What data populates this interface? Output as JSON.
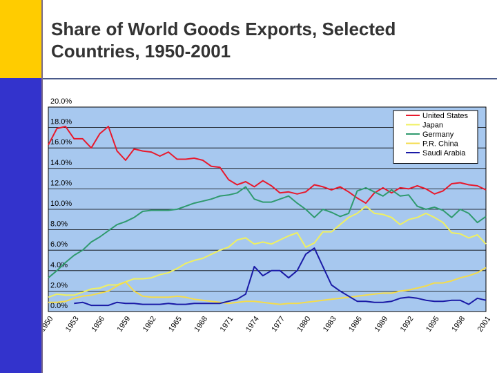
{
  "slide": {
    "title_line1": "Share of World Goods Exports, Selected",
    "title_line2": "Countries, 1950-2001"
  },
  "colors": {
    "plot_bg": "#a7c8ef",
    "grid": "#000000",
    "united_states": "#e8192c",
    "japan": "#f0f060",
    "germany": "#2f9a6e",
    "pr_china": "#f4dc4c",
    "saudi_arabia": "#1a1aa6"
  },
  "chart_data": {
    "type": "line",
    "title": "Share of World Goods Exports, Selected Countries, 1950-2001",
    "xlabel": "",
    "ylabel": "",
    "ylim": [
      0,
      20
    ],
    "grid": true,
    "legend_position": "top-right",
    "y_ticks": [
      "0.0%",
      "2.0%",
      "4.0%",
      "6.0%",
      "8.0%",
      "10.0%",
      "12.0%",
      "14.0%",
      "16.0%",
      "18.0%",
      "20.0%"
    ],
    "x_tick_labels": [
      "1950",
      "1953",
      "1956",
      "1959",
      "1962",
      "1965",
      "1968",
      "1971",
      "1974",
      "1977",
      "1980",
      "1983",
      "1986",
      "1989",
      "1992",
      "1995",
      "1998",
      "2001"
    ],
    "x": [
      1950,
      1951,
      1952,
      1953,
      1954,
      1955,
      1956,
      1957,
      1958,
      1959,
      1960,
      1961,
      1962,
      1963,
      1964,
      1965,
      1966,
      1967,
      1968,
      1969,
      1970,
      1971,
      1972,
      1973,
      1974,
      1975,
      1976,
      1977,
      1978,
      1979,
      1980,
      1981,
      1982,
      1983,
      1984,
      1985,
      1986,
      1987,
      1988,
      1989,
      1990,
      1991,
      1992,
      1993,
      1994,
      1995,
      1996,
      1997,
      1998,
      1999,
      2000,
      2001
    ],
    "series": [
      {
        "name": "United States",
        "color_key": "united_states",
        "values": [
          16.3,
          17.9,
          18.1,
          16.9,
          16.9,
          16.0,
          17.4,
          18.1,
          15.7,
          14.8,
          15.9,
          15.7,
          15.6,
          15.2,
          15.6,
          14.9,
          14.9,
          15.0,
          14.8,
          14.2,
          14.1,
          12.9,
          12.4,
          12.7,
          12.2,
          12.8,
          12.3,
          11.6,
          11.7,
          11.5,
          11.7,
          12.4,
          12.2,
          11.9,
          12.2,
          11.7,
          11.1,
          10.6,
          11.6,
          12.1,
          11.6,
          12.1,
          12.0,
          12.3,
          12.0,
          11.5,
          11.8,
          12.5,
          12.6,
          12.4,
          12.3,
          11.9
        ]
      },
      {
        "name": "Japan",
        "color_key": "japan",
        "values": [
          1.4,
          1.7,
          1.6,
          1.6,
          1.9,
          2.2,
          2.3,
          2.6,
          2.6,
          2.9,
          3.2,
          3.2,
          3.3,
          3.6,
          3.8,
          4.2,
          4.7,
          5.0,
          5.2,
          5.6,
          6.0,
          6.3,
          7.0,
          7.2,
          6.6,
          6.8,
          6.6,
          7.0,
          7.4,
          7.7,
          6.3,
          6.7,
          7.8,
          7.8,
          8.5,
          9.2,
          9.6,
          10.3,
          9.6,
          9.5,
          9.2,
          8.5,
          9.0,
          9.2,
          9.6,
          9.2,
          8.7,
          7.7,
          7.6,
          7.2,
          7.5,
          6.6
        ]
      },
      {
        "name": "Germany",
        "color_key": "germany",
        "values": [
          3.3,
          4.0,
          4.8,
          5.5,
          6.0,
          6.8,
          7.3,
          7.9,
          8.5,
          8.8,
          9.2,
          9.8,
          9.9,
          9.9,
          9.9,
          10.0,
          10.3,
          10.6,
          10.8,
          11.0,
          11.3,
          11.4,
          11.6,
          12.2,
          11.0,
          10.7,
          10.7,
          11.0,
          11.3,
          10.6,
          10.0,
          9.2,
          10.0,
          9.7,
          9.3,
          9.6,
          11.8,
          12.1,
          11.7,
          11.3,
          11.9,
          11.3,
          11.4,
          10.3,
          10.0,
          10.2,
          9.9,
          9.2,
          10.0,
          9.6,
          8.7,
          9.3
        ]
      },
      {
        "name": "P.R. China",
        "color_key": "pr_china",
        "values": [
          0.9,
          0.9,
          1.0,
          1.3,
          1.5,
          1.6,
          1.8,
          2.0,
          2.5,
          2.9,
          2.0,
          1.5,
          1.4,
          1.4,
          1.4,
          1.5,
          1.4,
          1.2,
          1.1,
          1.0,
          0.9,
          0.8,
          0.9,
          1.0,
          1.0,
          0.9,
          0.8,
          0.7,
          0.8,
          0.8,
          0.9,
          1.0,
          1.1,
          1.2,
          1.3,
          1.4,
          1.5,
          1.6,
          1.7,
          1.8,
          1.8,
          2.0,
          2.1,
          2.3,
          2.5,
          2.8,
          2.8,
          3.0,
          3.3,
          3.5,
          3.8,
          4.3
        ]
      },
      {
        "name": "Saudi Arabia",
        "color_key": "saudi_arabia",
        "values": [
          null,
          null,
          null,
          0.8,
          0.9,
          0.6,
          0.6,
          0.6,
          0.9,
          0.8,
          0.8,
          0.7,
          0.7,
          0.7,
          0.8,
          0.7,
          0.7,
          0.8,
          0.8,
          0.8,
          0.8,
          1.0,
          1.2,
          1.7,
          4.4,
          3.5,
          4.0,
          4.0,
          3.3,
          4.0,
          5.6,
          6.2,
          4.4,
          2.6,
          2.0,
          1.5,
          1.0,
          1.0,
          0.9,
          0.9,
          1.0,
          1.3,
          1.4,
          1.3,
          1.1,
          1.0,
          1.0,
          1.1,
          1.1,
          0.7,
          1.3,
          1.1
        ]
      }
    ]
  }
}
